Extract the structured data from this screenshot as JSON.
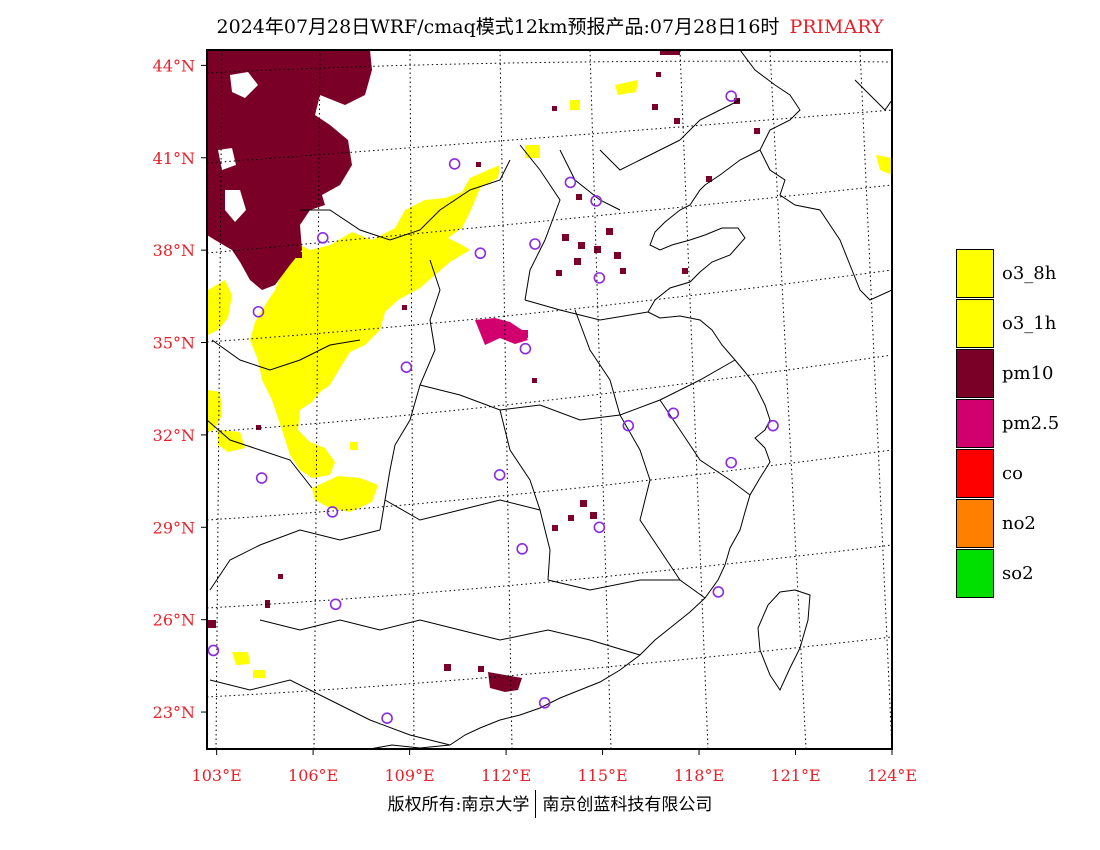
{
  "title": {
    "main": "2024年07月28日WRF/cmaq模式12km预报产品:07月28日16时",
    "tag": "PRIMARY"
  },
  "map": {
    "lon_labels": [
      "103°E",
      "106°E",
      "109°E",
      "112°E",
      "115°E",
      "118°E",
      "121°E",
      "124°E"
    ],
    "lat_labels": [
      "44°N",
      "41°N",
      "38°N",
      "35°N",
      "32°N",
      "29°N",
      "26°N",
      "23°N"
    ],
    "lon_range": [
      102.7,
      124
    ],
    "lat_range": [
      21.8,
      44.5
    ],
    "label_color": "#e8202a",
    "gridlines": "dotted",
    "station_marker_color": "#8a2be2",
    "stations": [
      {
        "lon": 119.0,
        "lat": 43.0
      },
      {
        "lon": 110.4,
        "lat": 40.8
      },
      {
        "lon": 114.0,
        "lat": 40.2
      },
      {
        "lon": 114.8,
        "lat": 39.6
      },
      {
        "lon": 106.3,
        "lat": 38.4
      },
      {
        "lon": 111.2,
        "lat": 37.9
      },
      {
        "lon": 112.9,
        "lat": 38.2
      },
      {
        "lon": 114.9,
        "lat": 37.1
      },
      {
        "lon": 104.3,
        "lat": 36.0
      },
      {
        "lon": 112.6,
        "lat": 34.8
      },
      {
        "lon": 108.9,
        "lat": 34.2
      },
      {
        "lon": 117.2,
        "lat": 32.7
      },
      {
        "lon": 115.8,
        "lat": 32.3
      },
      {
        "lon": 120.3,
        "lat": 32.3
      },
      {
        "lon": 119.0,
        "lat": 31.1
      },
      {
        "lon": 104.4,
        "lat": 30.6
      },
      {
        "lon": 111.8,
        "lat": 30.7
      },
      {
        "lon": 106.6,
        "lat": 29.5
      },
      {
        "lon": 114.9,
        "lat": 29.0
      },
      {
        "lon": 112.5,
        "lat": 28.3
      },
      {
        "lon": 106.7,
        "lat": 26.5
      },
      {
        "lon": 118.6,
        "lat": 26.9
      },
      {
        "lon": 102.9,
        "lat": 25.0
      },
      {
        "lon": 108.3,
        "lat": 22.8
      },
      {
        "lon": 113.2,
        "lat": 23.3
      }
    ]
  },
  "legend": [
    {
      "label": "o3_8h",
      "color": "#ffff00"
    },
    {
      "label": "o3_1h",
      "color": "#ffff00"
    },
    {
      "label": "pm10",
      "color": "#7a0028"
    },
    {
      "label": "pm2.5",
      "color": "#d2006e"
    },
    {
      "label": "co",
      "color": "#ff0000"
    },
    {
      "label": "no2",
      "color": "#ff7f00"
    },
    {
      "label": "so2",
      "color": "#00e000"
    }
  ],
  "footer": {
    "left": "版权所有:南京大学",
    "right": "南京创蓝科技有限公司"
  }
}
